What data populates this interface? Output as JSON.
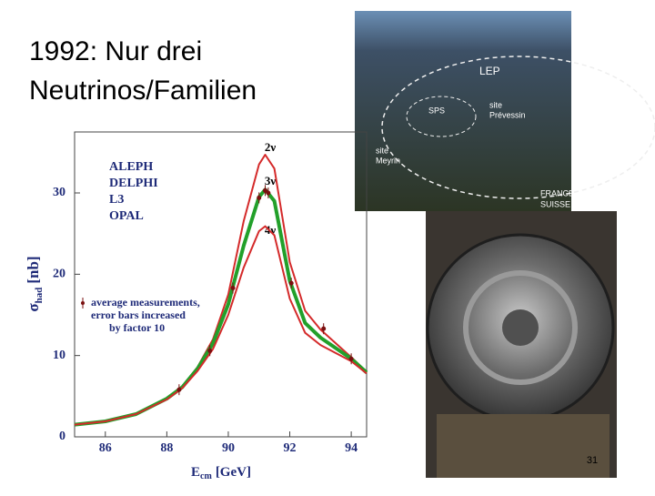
{
  "slide": {
    "title_lines": [
      "1992: Nur drei",
      "Neutrinos/Familien"
    ],
    "page_number": "31"
  },
  "aerial_photo": {
    "labels": [
      "LEP",
      "SPS",
      "site",
      "Prévessin",
      "site",
      "Meyrin",
      "FRANCE",
      "SUISSE"
    ]
  },
  "chart_data": {
    "type": "line",
    "x_label": {
      "symbol": "E",
      "subscript": "cm",
      "unit": "[GeV]"
    },
    "y_label": {
      "symbol": "σ",
      "subscript": "had",
      "unit": "[nb]"
    },
    "legend_texts": [
      "ALEPH",
      "DELPHI",
      "L3",
      "OPAL"
    ],
    "annotation_lines": [
      "average measurements,",
      "error bars increased",
      "by factor 10"
    ],
    "x": [
      85,
      86,
      87,
      88,
      88.5,
      89,
      89.5,
      90,
      90.5,
      91,
      91.2,
      91.5,
      92,
      92.5,
      93,
      94,
      94.5
    ],
    "series": [
      {
        "name": "2ν",
        "color": "#d42a2a",
        "values": [
          1.5,
          1.9,
          2.8,
          4.7,
          6.2,
          8.6,
          12,
          17.5,
          26.5,
          33.5,
          34.7,
          33,
          21.5,
          15.5,
          13.2,
          9.8,
          8
        ]
      },
      {
        "name": "3ν",
        "color": "#22a02a",
        "values": [
          1.5,
          1.9,
          2.8,
          4.7,
          6.1,
          8.4,
          11.5,
          16.3,
          23.5,
          29.5,
          30.4,
          29,
          19.2,
          14,
          12.2,
          9.6,
          7.9
        ]
      },
      {
        "name": "4ν",
        "color": "#d42a2a",
        "values": [
          1.5,
          1.9,
          2.8,
          4.6,
          6,
          8.1,
          10.8,
          15,
          20.8,
          25.3,
          25.9,
          24.8,
          17,
          12.8,
          11.3,
          9.3,
          7.8
        ]
      }
    ],
    "measurements": {
      "color": "#7a1010",
      "x": [
        88.4,
        89.4,
        90.15,
        91.0,
        91.2,
        91.3,
        92.05,
        93.1,
        94.0
      ],
      "values": [
        5.8,
        10.6,
        18.3,
        29.4,
        30.3,
        30.0,
        18.9,
        13.3,
        9.6
      ]
    },
    "xlim": [
      85,
      94.5
    ],
    "ylim": [
      0,
      37.5
    ],
    "xticks": [
      86,
      88,
      90,
      92,
      94
    ],
    "yticks": [
      0,
      10,
      20,
      30
    ]
  }
}
